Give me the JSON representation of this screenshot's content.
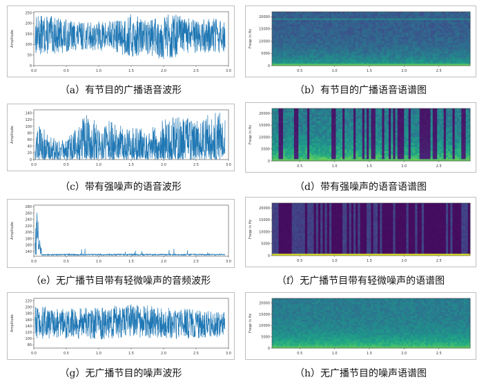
{
  "chart_data": [
    {
      "id": "a",
      "type": "line",
      "kind": "waveform",
      "caption": "（a）有节目的广播语音波形",
      "ylabel": "Amplitude",
      "xticks": [
        "0.0",
        "0.5",
        "1.0",
        "1.5",
        "2.0",
        "2.5",
        "3.0"
      ],
      "yticks": [
        "0",
        "50",
        "100",
        "150",
        "200",
        "250"
      ],
      "xlim": [
        0,
        3.0
      ],
      "ylim": [
        0,
        255
      ],
      "color": "#1f77b4",
      "envelope": {
        "x": [
          0,
          0.25,
          0.5,
          0.75,
          1.0,
          1.25,
          1.5,
          1.75,
          2.0,
          2.25,
          2.5,
          2.75,
          2.95
        ],
        "low": [
          50,
          55,
          60,
          75,
          70,
          65,
          30,
          55,
          25,
          40,
          60,
          55,
          60
        ],
        "high": [
          240,
          235,
          220,
          205,
          210,
          215,
          245,
          215,
          250,
          240,
          215,
          225,
          215
        ]
      }
    },
    {
      "id": "b",
      "type": "heatmap",
      "kind": "spectrogram",
      "caption": "（b）有节目的广播语音语谱图",
      "ylabel": "Freqe in Hz",
      "xticks": [
        "0.5",
        "1.0",
        "1.5",
        "2.0",
        "2.5"
      ],
      "yticks": [
        "0",
        "5000",
        "10000",
        "15000",
        "20000"
      ],
      "xlim": [
        0.1,
        2.95
      ],
      "ylim": [
        0,
        22050
      ],
      "colormap": "viridis"
    },
    {
      "id": "c",
      "type": "line",
      "kind": "waveform",
      "caption": "（c）带有强噪声的语音波形",
      "ylabel": "Amplitude",
      "xticks": [
        "0.0",
        "0.5",
        "1.0",
        "1.5",
        "2.0",
        "2.5",
        "3.0"
      ],
      "yticks": [
        "0",
        "20",
        "40",
        "60",
        "80",
        "100",
        "120",
        "140"
      ],
      "xlim": [
        0,
        3.0
      ],
      "ylim": [
        0,
        150
      ],
      "color": "#1f77b4",
      "envelope": {
        "x": [
          0,
          0.25,
          0.5,
          0.75,
          1.0,
          1.25,
          1.5,
          1.75,
          2.0,
          2.25,
          2.5,
          2.75,
          2.95
        ],
        "low": [
          0,
          0,
          0,
          0,
          0,
          0,
          0,
          0,
          0,
          0,
          0,
          0,
          0
        ],
        "high": [
          125,
          75,
          55,
          140,
          130,
          110,
          95,
          100,
          135,
          130,
          125,
          140,
          145
        ]
      }
    },
    {
      "id": "d",
      "type": "heatmap",
      "kind": "spectrogram",
      "caption": "（d）带有强噪声的语音语谱图",
      "ylabel": "Freqe in Hz",
      "xticks": [
        "0.5",
        "1.0",
        "1.5",
        "2.0",
        "2.5"
      ],
      "yticks": [
        "0",
        "5000",
        "10000",
        "15000",
        "20000"
      ],
      "xlim": [
        0.1,
        2.95
      ],
      "ylim": [
        0,
        22050
      ],
      "colormap": "viridis"
    },
    {
      "id": "e",
      "type": "line",
      "kind": "waveform",
      "caption": "（e）无广播节目带有轻微噪声的音频波形",
      "ylabel": "Amplitude",
      "xticks": [
        "0.0",
        "0.5",
        "1.0",
        "1.5",
        "2.0",
        "2.5",
        "3.0"
      ],
      "yticks": [
        "140",
        "160",
        "180",
        "200",
        "220",
        "240",
        "260",
        "280"
      ],
      "xlim": [
        0,
        3.0
      ],
      "ylim": [
        125,
        285
      ],
      "color": "#1f77b4",
      "envelope": {
        "x": [
          0,
          0.05,
          0.1,
          0.2,
          0.5,
          1.0,
          1.5,
          2.0,
          2.5,
          2.95
        ],
        "low": [
          128,
          128,
          128,
          128,
          128,
          128,
          128,
          128,
          128,
          128
        ],
        "high": [
          135,
          280,
          160,
          135,
          130,
          130,
          130,
          130,
          130,
          130
        ]
      }
    },
    {
      "id": "f",
      "type": "heatmap",
      "kind": "spectrogram",
      "caption": "（f）无广播节目带有轻微噪声的语谱图",
      "ylabel": "Freqe in Hz",
      "xticks": [
        "0.5",
        "1.0",
        "1.5",
        "2.0",
        "2.5"
      ],
      "yticks": [
        "0",
        "5000",
        "10000",
        "15000",
        "20000"
      ],
      "xlim": [
        0.1,
        2.95
      ],
      "ylim": [
        0,
        22050
      ],
      "colormap": "viridis"
    },
    {
      "id": "g",
      "type": "line",
      "kind": "waveform",
      "caption": "（g）无广播节目的噪声波形",
      "ylabel": "Amplitude",
      "xticks": [
        "0.0",
        "0.5",
        "1.0",
        "1.5",
        "2.0",
        "2.5",
        "3.0"
      ],
      "yticks": [
        "80",
        "100",
        "120",
        "140",
        "160",
        "180",
        "200",
        "220"
      ],
      "xlim": [
        0,
        3.0
      ],
      "ylim": [
        70,
        228
      ],
      "color": "#1f77b4",
      "envelope": {
        "x": [
          0,
          0.5,
          1.0,
          1.5,
          2.0,
          2.5,
          2.95
        ],
        "low": [
          100,
          100,
          95,
          105,
          100,
          100,
          105
        ],
        "high": [
          205,
          195,
          200,
          210,
          200,
          195,
          185
        ]
      }
    },
    {
      "id": "h",
      "type": "heatmap",
      "kind": "spectrogram",
      "caption": "（h）无广播节目的噪声语谱图",
      "ylabel": "Freqe in Hz",
      "xticks": [
        "0.5",
        "1.0",
        "1.5",
        "2.0",
        "2.5"
      ],
      "yticks": [
        "0",
        "5000",
        "10000",
        "15000",
        "20000"
      ],
      "xlim": [
        0.1,
        2.95
      ],
      "ylim": [
        0,
        22050
      ],
      "colormap": "viridis"
    }
  ]
}
